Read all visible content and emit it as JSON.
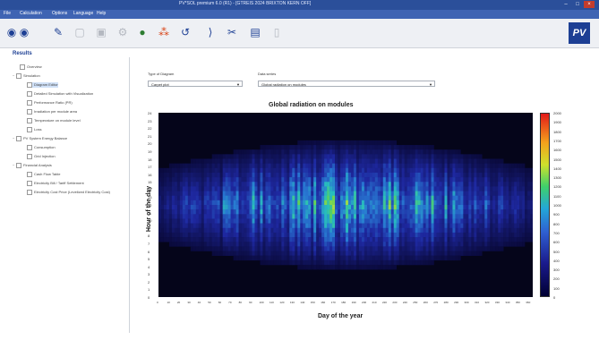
{
  "window": {
    "title": "PV*SOL premium 6.0 (R1) - [GTREIS 2024 BRIXTON KERN OFF]"
  },
  "menu": [
    "File",
    "Calculation",
    "Options",
    "Language",
    "Help"
  ],
  "toolbar": {
    "icons": [
      "back-icon",
      "forward-icon",
      "wrench-icon",
      "page-icon",
      "page-edit-icon",
      "gear-icon",
      "globe-icon",
      "people-icon",
      "undo-icon",
      "bracket-icon",
      "scissors-icon",
      "save-icon",
      "clipboard-icon"
    ]
  },
  "sidebar": {
    "title": "Results",
    "items": [
      {
        "label": "Overview"
      },
      {
        "label": "Simulation"
      },
      {
        "label": "Diagram Editor"
      },
      {
        "label": "Detailed Simulation with Visualization"
      },
      {
        "label": "Performance Ratio (PR)"
      },
      {
        "label": "Irradiation per module area"
      },
      {
        "label": "Temperature on module level"
      },
      {
        "label": "Loss"
      },
      {
        "label": "PV System Energy Balance"
      },
      {
        "label": "Consumption"
      },
      {
        "label": "Grid Injection"
      },
      {
        "label": "Financial Analysis"
      },
      {
        "label": "Cash Flow Table"
      },
      {
        "label": "Electricity Bill / Tariff Settlement"
      },
      {
        "label": "Electricity Cost Price (Levelized Electricity Cost)"
      }
    ]
  },
  "controls": {
    "diagram_type_label": "Type of Diagram",
    "diagram_type_value": "Carpet plot",
    "data_series_label": "Data series",
    "data_series_value": "Global radiation on modules"
  },
  "chart_data": {
    "type": "heatmap",
    "title": "Global radiation on modules",
    "xlabel": "Day of the year",
    "ylabel": "Hour of the day",
    "xlim": [
      0,
      365
    ],
    "ylim": [
      0,
      24
    ],
    "x_ticks": [
      "0",
      "10",
      "20",
      "30",
      "40",
      "50",
      "60",
      "70",
      "80",
      "90",
      "100",
      "110",
      "120",
      "130",
      "140",
      "150",
      "160",
      "170",
      "180",
      "190",
      "200",
      "210",
      "220",
      "230",
      "240",
      "250",
      "260",
      "270",
      "280",
      "290",
      "300",
      "310",
      "320",
      "330",
      "340",
      "350",
      "360"
    ],
    "y_ticks": [
      "0",
      "1",
      "2",
      "3",
      "4",
      "5",
      "6",
      "7",
      "8",
      "9",
      "10",
      "11",
      "12",
      "13",
      "14",
      "15",
      "16",
      "17",
      "18",
      "19",
      "20",
      "21",
      "22",
      "23",
      "24"
    ],
    "colorbar_ticks": [
      "0",
      "100",
      "200",
      "300",
      "400",
      "500",
      "600",
      "700",
      "800",
      "900",
      "1000",
      "1100",
      "1200",
      "1300",
      "1400",
      "1500",
      "1600",
      "1700",
      "1800",
      "1900",
      "2000"
    ],
    "colorbar_range": [
      0,
      2000
    ]
  },
  "colors": {
    "accent": "#2b4f9a",
    "plot_bg": "#05051a"
  }
}
